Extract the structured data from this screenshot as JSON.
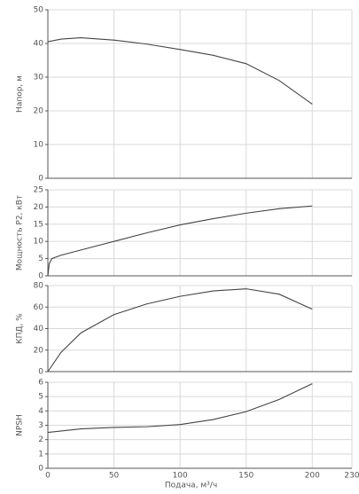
{
  "chart_data": [
    {
      "type": "line",
      "y_label": "Напор, м",
      "x": [
        0,
        10,
        25,
        50,
        75,
        100,
        125,
        150,
        175,
        200
      ],
      "series": [
        {
          "color": "#444444",
          "values": [
            40.5,
            41.3,
            41.7,
            41,
            39.8,
            38.2,
            36.5,
            34,
            29,
            22
          ]
        }
      ],
      "xlim": [
        0,
        230
      ],
      "xticks": [
        0,
        50,
        100,
        150,
        200,
        230
      ],
      "ylim": [
        0,
        50
      ],
      "yticks": [
        0,
        10,
        20,
        30,
        40,
        50
      ],
      "grid": true
    },
    {
      "type": "line",
      "y_label": "Мощность Р2, кВт",
      "x": [
        0,
        1,
        3,
        10,
        25,
        50,
        75,
        100,
        125,
        150,
        175,
        200
      ],
      "series": [
        {
          "color": "#444444",
          "values": [
            0,
            3.5,
            5,
            6,
            7.5,
            10,
            12.5,
            14.8,
            16.6,
            18.2,
            19.5,
            20.3
          ]
        }
      ],
      "xlim": [
        0,
        230
      ],
      "xticks": [
        0,
        50,
        100,
        150,
        200,
        230
      ],
      "ylim": [
        0,
        25
      ],
      "yticks": [
        0,
        5,
        10,
        15,
        20,
        25
      ],
      "grid": true
    },
    {
      "type": "line",
      "y_label": "КПД, %",
      "x": [
        0,
        10,
        25,
        50,
        75,
        100,
        125,
        150,
        175,
        200
      ],
      "series": [
        {
          "color": "#444444",
          "values": [
            0,
            18,
            36,
            53,
            63,
            70,
            75,
            77,
            72,
            58
          ]
        }
      ],
      "xlim": [
        0,
        230
      ],
      "xticks": [
        0,
        50,
        100,
        150,
        200,
        230
      ],
      "ylim": [
        0,
        80
      ],
      "yticks": [
        0,
        20,
        40,
        60,
        80
      ],
      "grid": true
    },
    {
      "type": "line",
      "y_label": "NPSH",
      "x_label": "Подача, м³/ч",
      "x": [
        0,
        25,
        50,
        75,
        100,
        125,
        150,
        175,
        200
      ],
      "series": [
        {
          "color": "#444444",
          "values": [
            2.5,
            2.75,
            2.85,
            2.9,
            3.05,
            3.4,
            3.95,
            4.8,
            5.9
          ]
        }
      ],
      "xlim": [
        0,
        230
      ],
      "xticks": [
        0,
        50,
        100,
        150,
        200,
        230
      ],
      "ylim": [
        0,
        6
      ],
      "yticks": [
        0,
        1,
        2,
        3,
        4,
        5,
        6
      ],
      "grid": true
    }
  ]
}
